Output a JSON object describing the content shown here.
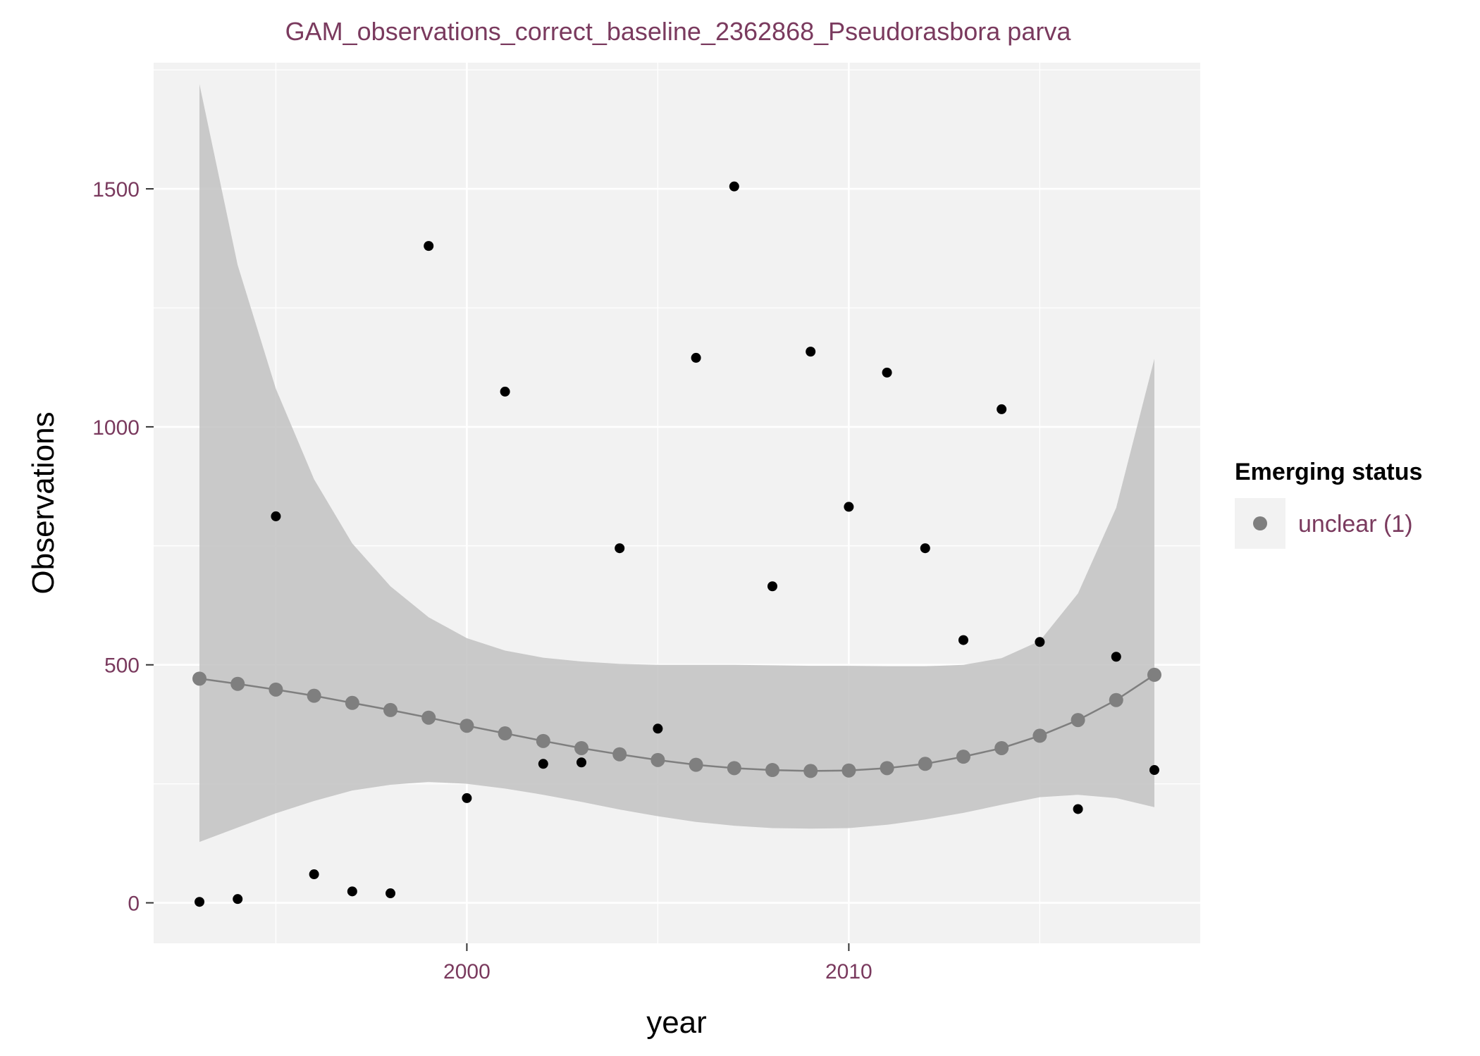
{
  "chart_data": {
    "type": "scatter",
    "title": "GAM_observations_correct_baseline_2362868_Pseudorasbora parva",
    "xlabel": "year",
    "ylabel": "Observations",
    "xlim": [
      1991.8,
      2019.2
    ],
    "ylim": [
      -85,
      1765
    ],
    "x_ticks": [
      2000,
      2010
    ],
    "x_tick_labels": [
      "2000",
      "2010"
    ],
    "y_ticks": [
      0,
      500,
      1000,
      1500
    ],
    "y_tick_labels": [
      "0",
      "500",
      "1000",
      "1500"
    ],
    "grid": true,
    "legend": {
      "title": "Emerging status",
      "position": "right",
      "entries": [
        "unclear (1)"
      ]
    },
    "colors": {
      "panel_background": "#f2f2f2",
      "grid": "#ffffff",
      "points": "#000000",
      "fit": "#7f7f7f",
      "ribbon": "#bebebe",
      "text": "#7a3a5e"
    },
    "series": [
      {
        "type": "scatter",
        "x": [
          1993,
          1994,
          1995,
          1996,
          1997,
          1998,
          1999,
          2000,
          2001,
          2002,
          2003,
          2004,
          2005,
          2006,
          2007,
          2008,
          2009,
          2010,
          2011,
          2012,
          2013,
          2014,
          2015,
          2016,
          2017,
          2018
        ],
        "y": [
          2,
          8,
          812,
          60,
          24,
          20,
          1380,
          220,
          1074,
          292,
          295,
          745,
          366,
          1145,
          1505,
          665,
          1158,
          832,
          1114,
          745,
          552,
          1037,
          548,
          197,
          517,
          279
        ]
      },
      {
        "name": "unclear (1)",
        "type": "line",
        "x": [
          1993,
          1994,
          1995,
          1996,
          1997,
          1998,
          1999,
          2000,
          2001,
          2002,
          2003,
          2004,
          2005,
          2006,
          2007,
          2008,
          2009,
          2010,
          2011,
          2012,
          2013,
          2014,
          2015,
          2016,
          2017,
          2018
        ],
        "y": [
          471,
          460,
          448,
          435,
          420,
          405,
          389,
          372,
          356,
          340,
          325,
          312,
          300,
          290,
          283,
          279,
          277,
          278,
          283,
          292,
          307,
          325,
          351,
          384,
          426,
          479
        ]
      },
      {
        "type": "ribbon",
        "x": [
          1993,
          1994,
          1995,
          1996,
          1997,
          1998,
          1999,
          2000,
          2001,
          2002,
          2003,
          2004,
          2005,
          2006,
          2007,
          2008,
          2009,
          2010,
          2011,
          2012,
          2013,
          2014,
          2015,
          2016,
          2017,
          2018
        ],
        "lower": [
          128,
          158,
          188,
          214,
          236,
          248,
          254,
          250,
          240,
          227,
          212,
          196,
          182,
          170,
          162,
          157,
          156,
          157,
          164,
          175,
          189,
          206,
          222,
          227,
          220,
          201
        ],
        "upper": [
          1720,
          1340,
          1080,
          890,
          755,
          665,
          600,
          556,
          530,
          515,
          507,
          502,
          500,
          500,
          500,
          499,
          498,
          498,
          497,
          497,
          500,
          514,
          550,
          650,
          830,
          1143
        ]
      }
    ]
  }
}
